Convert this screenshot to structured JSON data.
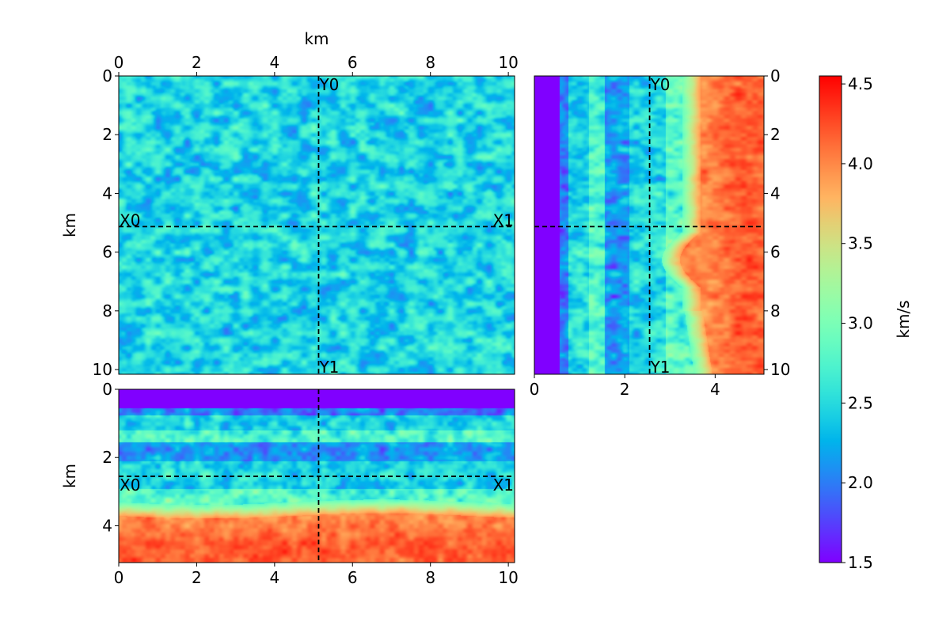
{
  "chart_data": {
    "type": "heatmap",
    "colormap": "rainbow",
    "colorbar": {
      "label": "km/s",
      "range": [
        1.5,
        4.55
      ],
      "ticks": [
        "1.5",
        "2.0",
        "2.5",
        "3.0",
        "3.5",
        "4.0",
        "4.5"
      ]
    },
    "panels": [
      {
        "id": "depth-slice",
        "xlabel": "km",
        "ylabel": "km",
        "xaxis_position": "top",
        "xlim": [
          0,
          10.16
        ],
        "ylim": [
          10.16,
          0
        ],
        "xticks": [
          "0",
          "2",
          "4",
          "6",
          "8",
          "10"
        ],
        "yticks": [
          "0",
          "2",
          "4",
          "6",
          "8",
          "10"
        ],
        "annotations": [
          "X0",
          "X1",
          "Y0",
          "Y1"
        ],
        "slice_x": 5.13,
        "slice_y": 5.13
      },
      {
        "id": "yz-slice",
        "xlabel": "",
        "ylabel": "",
        "yaxis_position": "right",
        "xlim": [
          0,
          5.08
        ],
        "ylim": [
          10.16,
          0
        ],
        "xticks": [
          "0",
          "2",
          "4"
        ],
        "yticks": [
          "0",
          "2",
          "4",
          "6",
          "8",
          "10"
        ],
        "annotations": [
          "Y0",
          "Y1"
        ],
        "slice_z": 2.55,
        "slice_y": 5.13
      },
      {
        "id": "xz-slice",
        "xlabel": "",
        "ylabel": "km",
        "xlim": [
          0,
          10.16
        ],
        "ylim": [
          5.08,
          0
        ],
        "xticks": [
          "0",
          "2",
          "4",
          "6",
          "8",
          "10"
        ],
        "yticks": [
          "0",
          "2",
          "4"
        ],
        "annotations": [
          "X0",
          "X1"
        ],
        "slice_z": 2.55,
        "slice_x": 5.13
      }
    ]
  }
}
